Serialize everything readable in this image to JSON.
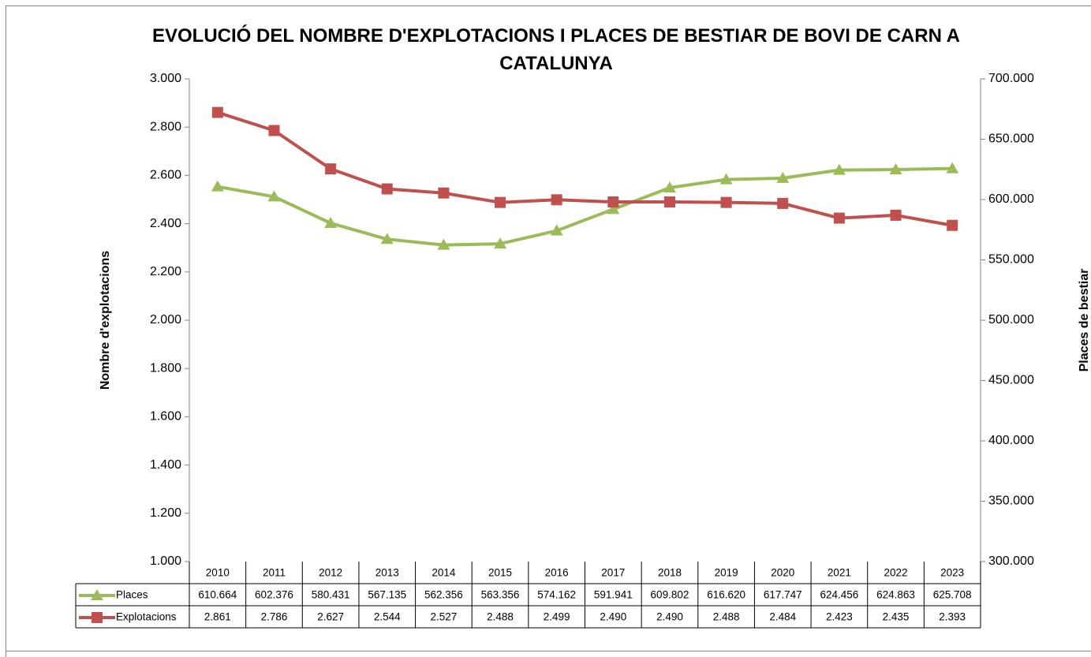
{
  "chart_data": {
    "type": "line",
    "title": "EVOLUCIÓ DEL NOMBRE D'EXPLOTACIONS I PLACES DE BESTIAR DE BOVI DE CARN A CATALUNYA",
    "y_label": "Nombre d'explotacions",
    "y2_label": "Places de bestiar",
    "categories": [
      "2010",
      "2011",
      "2012",
      "2013",
      "2014",
      "2015",
      "2016",
      "2017",
      "2018",
      "2019",
      "2020",
      "2021",
      "2022",
      "2023"
    ],
    "series": [
      {
        "name": "Places",
        "color": "#9bbb59",
        "marker": "triangle",
        "axis": "y2",
        "values": [
          610664,
          602376,
          580431,
          567135,
          562356,
          563356,
          574162,
          591941,
          609802,
          616620,
          617747,
          624456,
          624863,
          625708
        ],
        "value_labels": [
          "610.664",
          "602.376",
          "580.431",
          "567.135",
          "562.356",
          "563.356",
          "574.162",
          "591.941",
          "609.802",
          "616.620",
          "617.747",
          "624.456",
          "624.863",
          "625.708"
        ]
      },
      {
        "name": "Explotacions",
        "color": "#c0504d",
        "marker": "square",
        "axis": "y",
        "values": [
          2861,
          2786,
          2627,
          2544,
          2527,
          2488,
          2499,
          2490,
          2490,
          2488,
          2484,
          2423,
          2435,
          2393
        ],
        "value_labels": [
          "2.861",
          "2.786",
          "2.627",
          "2.544",
          "2.527",
          "2.488",
          "2.499",
          "2.490",
          "2.490",
          "2.488",
          "2.484",
          "2.423",
          "2.435",
          "2.393"
        ]
      }
    ],
    "ylim": [
      1000,
      3000
    ],
    "yticks": [
      {
        "value": 1000,
        "label": "1.000"
      },
      {
        "value": 1200,
        "label": "1.200"
      },
      {
        "value": 1400,
        "label": "1.400"
      },
      {
        "value": 1600,
        "label": "1.600"
      },
      {
        "value": 1800,
        "label": "1.800"
      },
      {
        "value": 2000,
        "label": "2.000"
      },
      {
        "value": 2200,
        "label": "2.200"
      },
      {
        "value": 2400,
        "label": "2.400"
      },
      {
        "value": 2600,
        "label": "2.600"
      },
      {
        "value": 2800,
        "label": "2.800"
      },
      {
        "value": 3000,
        "label": "3.000"
      }
    ],
    "y2lim": [
      300000,
      700000
    ],
    "y2ticks": [
      {
        "value": 300000,
        "label": "300.000"
      },
      {
        "value": 350000,
        "label": "350.000"
      },
      {
        "value": 400000,
        "label": "400.000"
      },
      {
        "value": 450000,
        "label": "450.000"
      },
      {
        "value": 500000,
        "label": "500.000"
      },
      {
        "value": 550000,
        "label": "550.000"
      },
      {
        "value": 600000,
        "label": "600.000"
      },
      {
        "value": 650000,
        "label": "650.000"
      },
      {
        "value": 700000,
        "label": "700.000"
      }
    ],
    "grid": false,
    "legend": "table"
  }
}
